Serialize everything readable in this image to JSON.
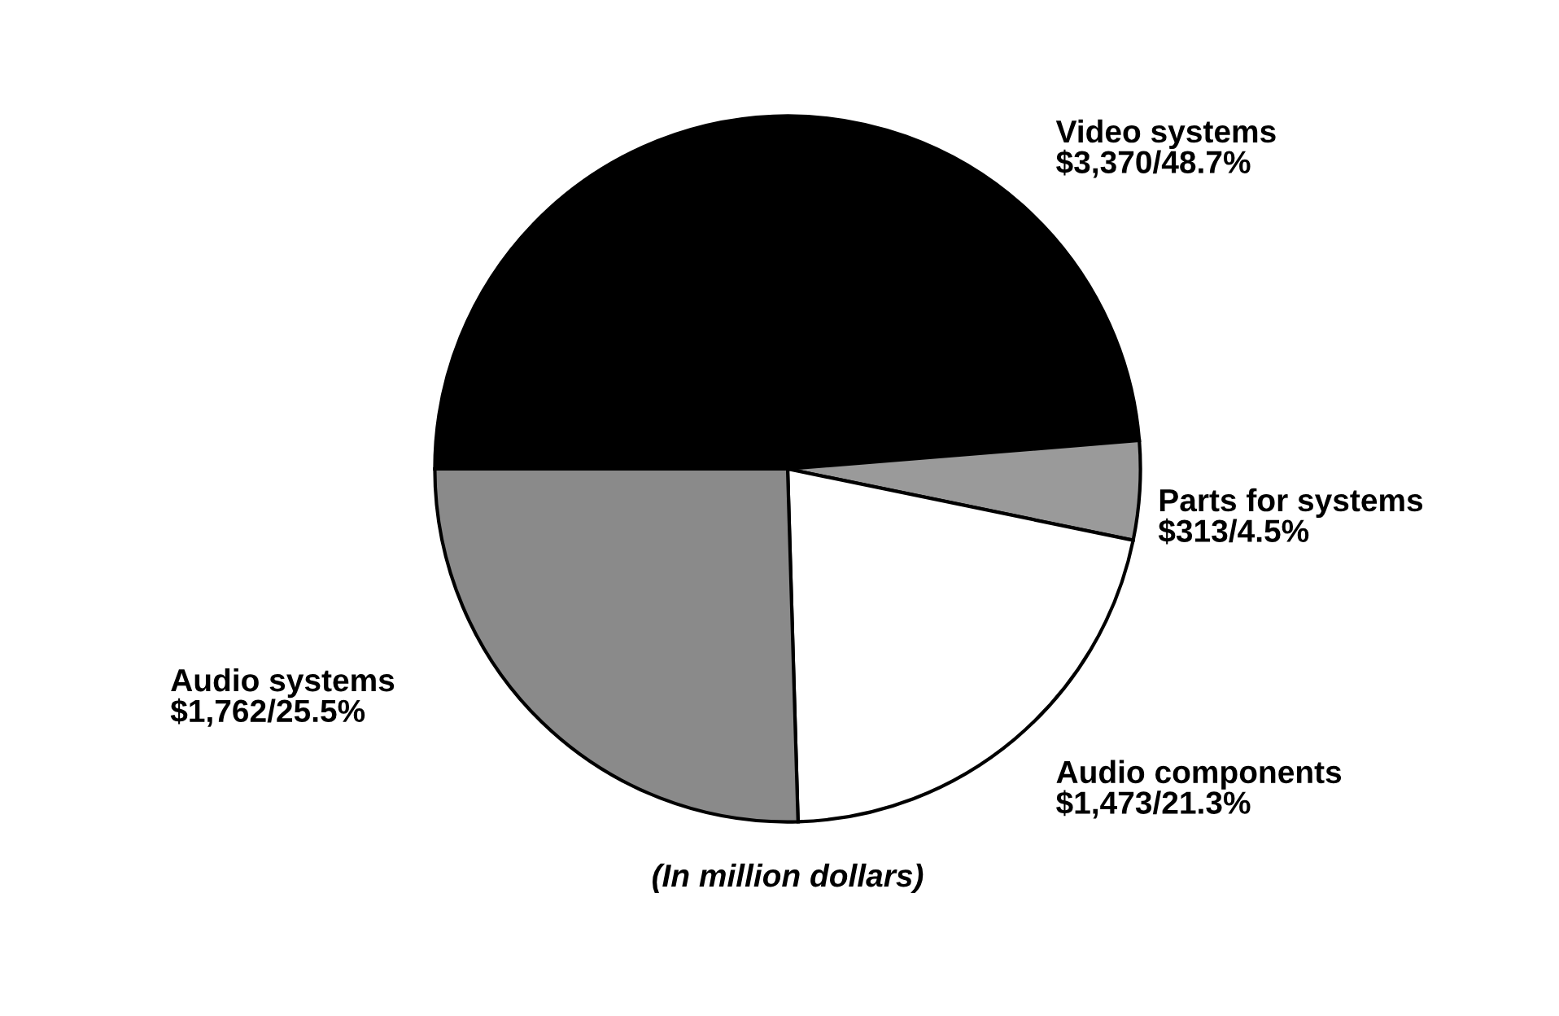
{
  "chart_data": {
    "type": "pie",
    "categories": [
      "Video systems",
      "Parts for systems",
      "Audio components",
      "Audio systems"
    ],
    "values": [
      3370,
      313,
      1473,
      1762
    ],
    "value_labels": [
      "$3,370/48.7%",
      "$313/4.5%",
      "$1,473/21.3%",
      "$1,762/25.5%"
    ],
    "colors": [
      "#000000",
      "#9a9a9a",
      "#ffffff",
      "#8a8a8a"
    ],
    "annotations": [
      "(In million dollars)"
    ],
    "legend": false
  }
}
